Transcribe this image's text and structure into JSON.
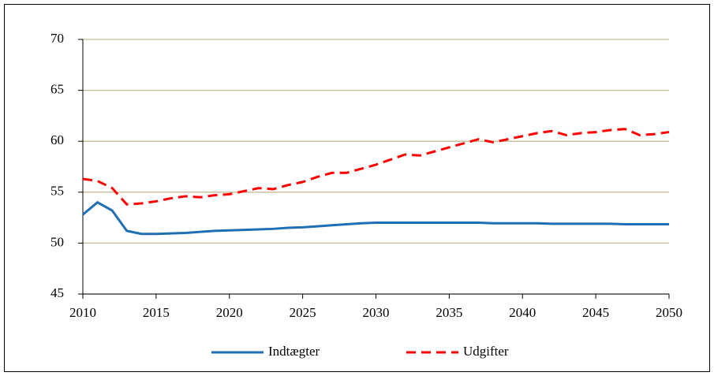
{
  "chart_data": {
    "type": "line",
    "x": [
      2010,
      2011,
      2012,
      2013,
      2014,
      2015,
      2016,
      2017,
      2018,
      2019,
      2020,
      2021,
      2022,
      2023,
      2024,
      2025,
      2026,
      2027,
      2028,
      2029,
      2030,
      2031,
      2032,
      2033,
      2034,
      2035,
      2036,
      2037,
      2038,
      2039,
      2040,
      2041,
      2042,
      2043,
      2044,
      2045,
      2046,
      2047,
      2048,
      2049,
      2050
    ],
    "series": [
      {
        "name": "Indtægter",
        "color": "#1f6fb4",
        "dash": false,
        "values": [
          52.8,
          54.0,
          53.2,
          51.2,
          50.9,
          50.9,
          50.95,
          51.0,
          51.1,
          51.2,
          51.25,
          51.3,
          51.35,
          51.4,
          51.5,
          51.55,
          51.65,
          51.75,
          51.85,
          51.95,
          52.0,
          52.0,
          52.0,
          52.0,
          52.0,
          52.0,
          52.0,
          52.0,
          51.95,
          51.95,
          51.95,
          51.95,
          51.9,
          51.9,
          51.9,
          51.9,
          51.9,
          51.85,
          51.85,
          51.85,
          51.85
        ]
      },
      {
        "name": "Udgifter",
        "color": "#ff0000",
        "dash": true,
        "values": [
          56.3,
          56.1,
          55.4,
          53.8,
          53.9,
          54.1,
          54.4,
          54.6,
          54.5,
          54.7,
          54.8,
          55.1,
          55.4,
          55.3,
          55.7,
          56.0,
          56.5,
          56.9,
          56.9,
          57.3,
          57.7,
          58.2,
          58.7,
          58.6,
          59.0,
          59.4,
          59.8,
          60.2,
          59.9,
          60.2,
          60.5,
          60.8,
          61.0,
          60.6,
          60.8,
          60.9,
          61.1,
          61.2,
          60.6,
          60.7,
          60.9
        ]
      }
    ],
    "xlim": [
      2010,
      2050
    ],
    "xticks": [
      2010,
      2015,
      2020,
      2025,
      2030,
      2035,
      2040,
      2045,
      2050
    ],
    "ylim": [
      45,
      70
    ],
    "yticks": [
      45,
      50,
      55,
      60,
      65,
      70
    ],
    "grid": true,
    "legend": "bottom"
  }
}
